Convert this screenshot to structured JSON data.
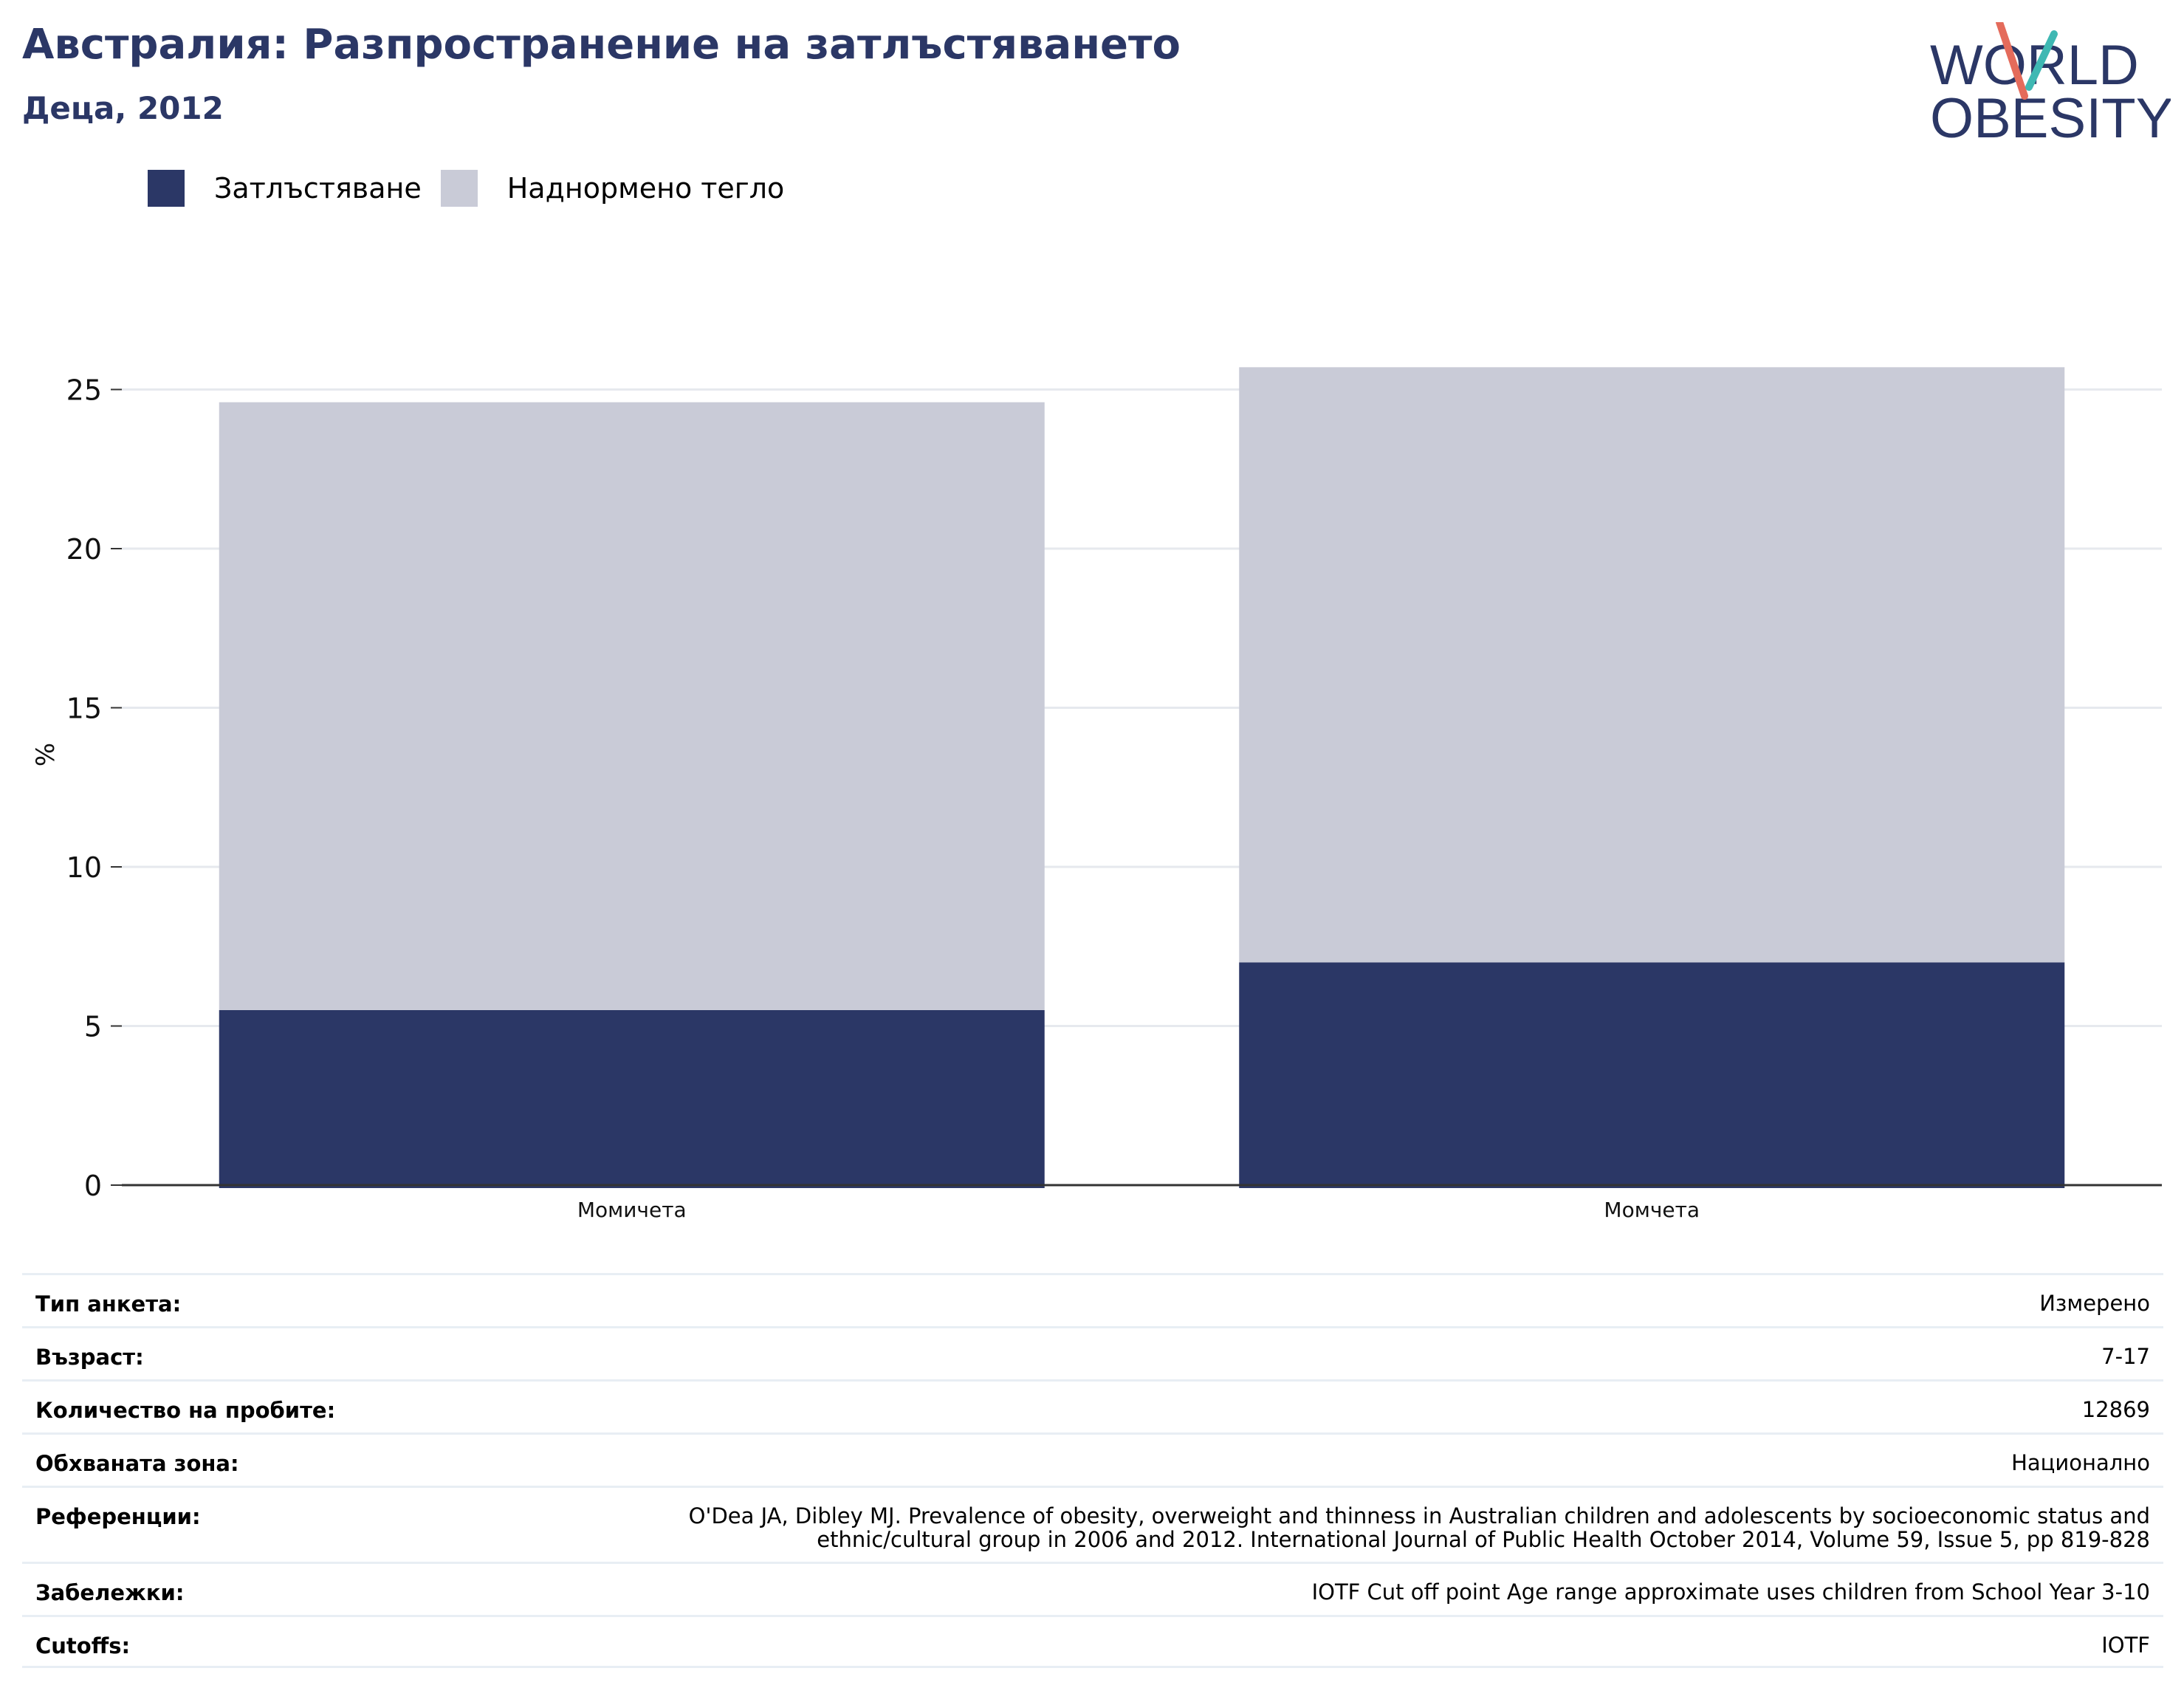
{
  "header": {
    "title": "Австралия: Разпространение на затлъстяването",
    "subtitle": "Деца, 2012"
  },
  "logo": {
    "line1": "WORLD",
    "line2": "OBESITY"
  },
  "colors": {
    "obesity": "#2b3766",
    "overweight": "#c9cbd7",
    "title": "#2b3766",
    "grid": "#e6e9ee",
    "axis": "#333333"
  },
  "legend": [
    {
      "label": "Затлъстяване",
      "color": "#2b3766"
    },
    {
      "label": "Наднормено тегло",
      "color": "#c9cbd7"
    }
  ],
  "chart_data": {
    "type": "bar",
    "stacked": true,
    "categories": [
      "Момичета",
      "Момчета"
    ],
    "series": [
      {
        "name": "Затлъстяване",
        "values": [
          5.5,
          7.0
        ]
      },
      {
        "name": "Наднормено тегло",
        "values": [
          19.1,
          18.7
        ]
      }
    ],
    "totals": [
      24.6,
      25.7
    ],
    "ylabel": "%",
    "yticks": [
      0,
      5,
      10,
      15,
      20,
      25
    ],
    "ylim": [
      0,
      25.7
    ],
    "grid": true,
    "legend_position": "top-left"
  },
  "info": [
    {
      "key": "Тип анкета:",
      "value": "Измерено"
    },
    {
      "key": "Възраст:",
      "value": "7-17"
    },
    {
      "key": "Количество на пробите:",
      "value": "12869"
    },
    {
      "key": "Обхваната зона:",
      "value": "Национално"
    },
    {
      "key": "Референции:",
      "value": "O'Dea JA, Dibley MJ. Prevalence of obesity, overweight and thinness in Australian children and adolescents by socioeconomic status and ethnic/cultural group in 2006 and 2012. International Journal of Public Health October 2014, Volume 59, Issue 5, pp 819-828"
    },
    {
      "key": "Забележки:",
      "value": "IOTF Cut off point Age range approximate uses children from School Year 3-10"
    },
    {
      "key": "Cutoffs:",
      "value": "IOTF"
    }
  ]
}
